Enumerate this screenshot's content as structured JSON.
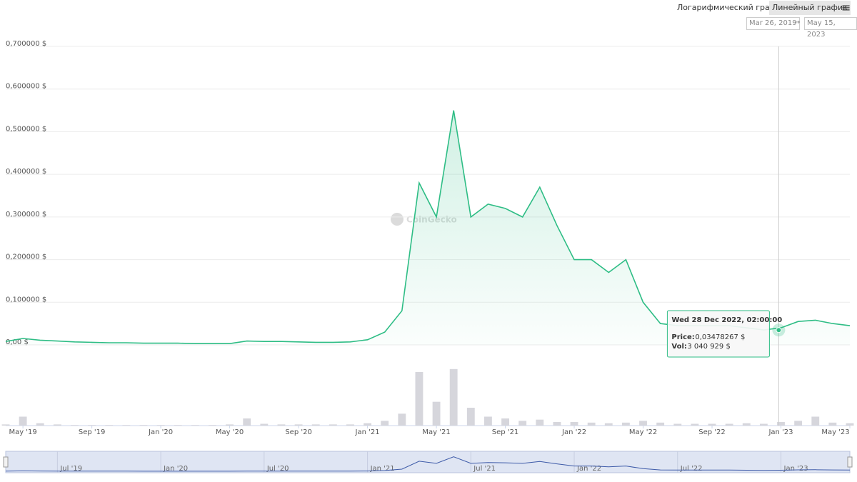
{
  "toolbar": {
    "log_button": "Логарифмический график",
    "linear_button": "Линейный график",
    "menu": "≡",
    "date_from": "Mar 26, 2019",
    "date_arrow": "→",
    "date_to": "May 15, 2023"
  },
  "watermark": "CoinGecko",
  "chart_data": {
    "type": "area",
    "x": [
      "2019-04",
      "2019-05",
      "2019-06",
      "2019-07",
      "2019-08",
      "2019-09",
      "2019-10",
      "2019-11",
      "2019-12",
      "2020-01",
      "2020-02",
      "2020-03",
      "2020-04",
      "2020-05",
      "2020-06",
      "2020-07",
      "2020-08",
      "2020-09",
      "2020-10",
      "2020-11",
      "2020-12",
      "2021-01",
      "2021-02",
      "2021-03",
      "2021-04",
      "2021-05",
      "2021-06",
      "2021-07",
      "2021-08",
      "2021-09",
      "2021-10",
      "2021-11",
      "2021-12",
      "2022-01",
      "2022-02",
      "2022-03",
      "2022-04",
      "2022-05",
      "2022-06",
      "2022-07",
      "2022-08",
      "2022-09",
      "2022-10",
      "2022-11",
      "2022-12",
      "2023-01",
      "2023-02",
      "2023-03",
      "2023-04",
      "2023-05"
    ],
    "values": [
      0.008,
      0.015,
      0.011,
      0.009,
      0.007,
      0.006,
      0.005,
      0.005,
      0.004,
      0.004,
      0.004,
      0.003,
      0.003,
      0.003,
      0.009,
      0.008,
      0.008,
      0.007,
      0.006,
      0.006,
      0.007,
      0.012,
      0.03,
      0.08,
      0.38,
      0.3,
      0.55,
      0.3,
      0.33,
      0.32,
      0.3,
      0.37,
      0.28,
      0.2,
      0.2,
      0.17,
      0.2,
      0.1,
      0.05,
      0.045,
      0.045,
      0.045,
      0.045,
      0.04,
      0.035,
      0.04,
      0.055,
      0.058,
      0.05,
      0.045
    ],
    "volume": [
      2000000,
      15000000,
      4000000,
      2000000,
      1000000,
      1000000,
      1000000,
      1000000,
      1000000,
      1000000,
      1000000,
      1000000,
      1000000,
      2000000,
      12000000,
      3000000,
      2000000,
      2000000,
      2000000,
      2000000,
      2000000,
      4000000,
      8000000,
      20000000,
      90000000,
      40000000,
      95000000,
      30000000,
      15000000,
      12000000,
      8000000,
      10000000,
      6000000,
      6000000,
      5000000,
      4000000,
      5000000,
      8000000,
      5000000,
      3000000,
      3000000,
      3000000,
      3000000,
      4000000,
      3000000,
      6000000,
      8000000,
      15000000,
      5000000,
      4000000
    ],
    "color": "#2ebd85",
    "volume_color": "#d6d6dc",
    "xlim": [
      "2019-04",
      "2023-05"
    ],
    "ylim": [
      0,
      0.7
    ],
    "volume_ylim": [
      0,
      120000000
    ],
    "grid": true,
    "yticks": [
      {
        "value": 0,
        "label": "0,00 $"
      },
      {
        "value": 0.1,
        "label": "0,100000 $"
      },
      {
        "value": 0.2,
        "label": "0,200000 $"
      },
      {
        "value": 0.3,
        "label": "0,300000 $"
      },
      {
        "value": 0.4,
        "label": "0,400000 $"
      },
      {
        "value": 0.5,
        "label": "0,500000 $"
      },
      {
        "value": 0.6,
        "label": "0,600000 $"
      },
      {
        "value": 0.7,
        "label": "0,700000 $"
      }
    ],
    "xticks": [
      {
        "value": "2019-05",
        "label": "May '19"
      },
      {
        "value": "2019-09",
        "label": "Sep '19"
      },
      {
        "value": "2020-01",
        "label": "Jan '20"
      },
      {
        "value": "2020-05",
        "label": "May '20"
      },
      {
        "value": "2020-09",
        "label": "Sep '20"
      },
      {
        "value": "2021-01",
        "label": "Jan '21"
      },
      {
        "value": "2021-05",
        "label": "May '21"
      },
      {
        "value": "2021-09",
        "label": "Sep '21"
      },
      {
        "value": "2022-01",
        "label": "Jan '22"
      },
      {
        "value": "2022-05",
        "label": "May '22"
      },
      {
        "value": "2022-09",
        "label": "Sep '22"
      },
      {
        "value": "2023-01",
        "label": "Jan '23"
      },
      {
        "value": "2023-05",
        "label": "May '23"
      }
    ],
    "navigator_ticks": [
      {
        "value": "2019-07",
        "label": "Jul '19"
      },
      {
        "value": "2020-01",
        "label": "Jan '20"
      },
      {
        "value": "2020-07",
        "label": "Jul '20"
      },
      {
        "value": "2021-01",
        "label": "Jan '21"
      },
      {
        "value": "2021-07",
        "label": "Jul '21"
      },
      {
        "value": "2022-01",
        "label": "Jan '22"
      },
      {
        "value": "2022-07",
        "label": "Jul '22"
      },
      {
        "value": "2023-01",
        "label": "Jan '23"
      }
    ],
    "tooltip": {
      "x": "2022-12-28",
      "title": "Wed 28 Dec 2022, 02:00:00",
      "price_label": "Price:",
      "price": {
        "value": 0.03478267,
        "label": "0,03478267 $"
      },
      "vol_label": "Vol:",
      "vol": {
        "value": 3040929,
        "label": "3 040 929 $"
      }
    }
  }
}
